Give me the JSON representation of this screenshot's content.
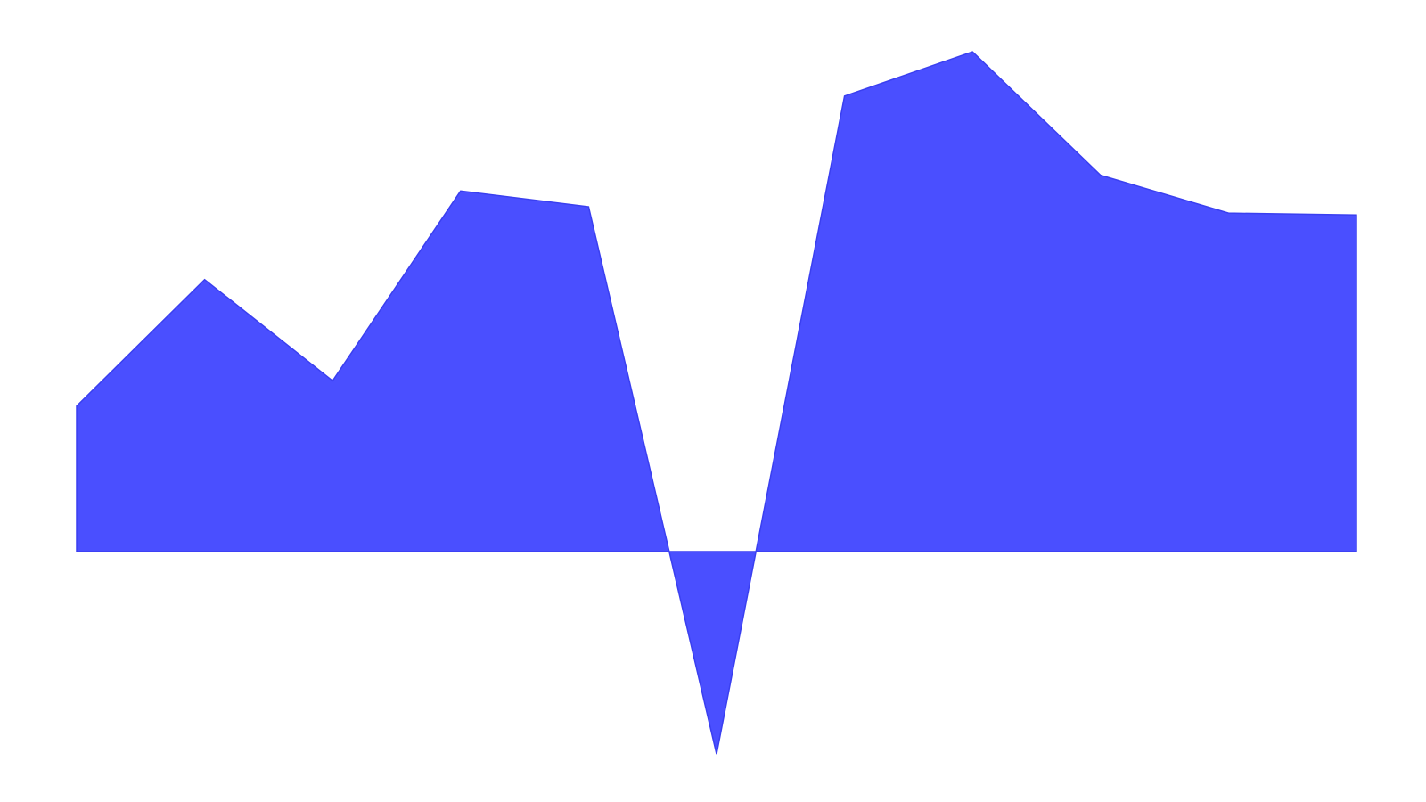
{
  "chart_data": {
    "type": "area",
    "x": [
      1,
      2,
      3,
      4,
      5,
      6,
      7,
      8,
      9,
      10,
      11
    ],
    "values": [
      23,
      43,
      27,
      57,
      54.5,
      -32,
      72,
      79,
      59.5,
      53.5,
      53.2
    ],
    "ylim": [
      -35,
      82
    ],
    "grid": false,
    "legend": "none",
    "fill_color": "#4a4fff",
    "stroke_color": "#3a3ff0"
  }
}
